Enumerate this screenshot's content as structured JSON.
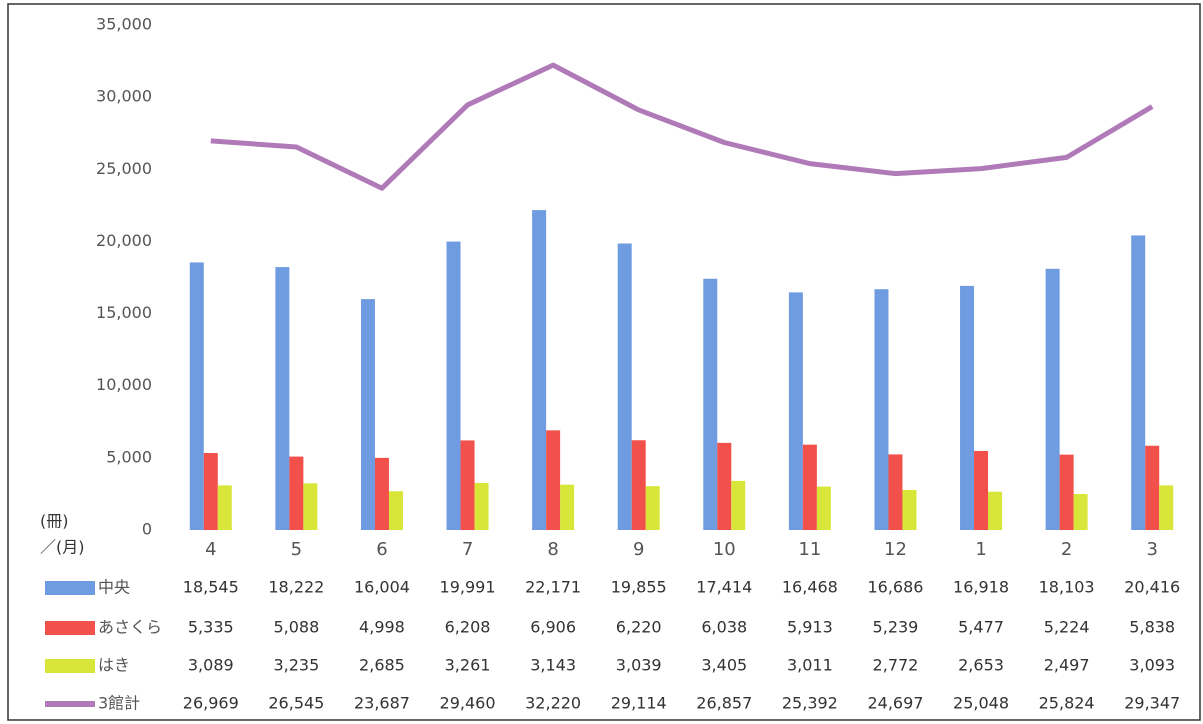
{
  "chart_data": {
    "type": "bar",
    "y_label": "(冊)",
    "x_label": "／(月)",
    "categories": [
      "4",
      "5",
      "6",
      "7",
      "8",
      "9",
      "10",
      "11",
      "12",
      "1",
      "2",
      "3"
    ],
    "ylim": [
      0,
      35000
    ],
    "yticks": [
      0,
      {
        "value": 5000,
        "label": "5,000"
      },
      {
        "value": 10000,
        "label": "10,000"
      },
      {
        "value": 15000,
        "label": "15,000"
      },
      {
        "value": 20000,
        "label": "20,000"
      },
      {
        "value": 25000,
        "label": "25,000"
      },
      {
        "value": 30000,
        "label": "30,000"
      },
      {
        "value": 35000,
        "label": "35,000"
      }
    ],
    "series": [
      {
        "name": "中央",
        "type": "bar",
        "color": "#6f9be0",
        "values": [
          18545,
          18222,
          16004,
          19991,
          22171,
          19855,
          17414,
          16468,
          16686,
          16918,
          18103,
          20416
        ],
        "value_labels": [
          "18,545",
          "18,222",
          "16,004",
          "19,991",
          "22,171",
          "19,855",
          "17,414",
          "16,468",
          "16,686",
          "16,918",
          "18,103",
          "20,416"
        ]
      },
      {
        "name": "あさくら",
        "type": "bar",
        "color": "#f2504a",
        "values": [
          5335,
          5088,
          4998,
          6208,
          6906,
          6220,
          6038,
          5913,
          5239,
          5477,
          5224,
          5838
        ],
        "value_labels": [
          "5,335",
          "5,088",
          "4,998",
          "6,208",
          "6,906",
          "6,220",
          "6,038",
          "5,913",
          "5,239",
          "5,477",
          "5,224",
          "5,838"
        ]
      },
      {
        "name": "はき",
        "type": "bar",
        "color": "#d8e63a",
        "values": [
          3089,
          3235,
          2685,
          3261,
          3143,
          3039,
          3405,
          3011,
          2772,
          2653,
          2497,
          3093
        ],
        "value_labels": [
          "3,089",
          "3,235",
          "2,685",
          "3,261",
          "3,143",
          "3,039",
          "3,405",
          "3,011",
          "2,772",
          "2,653",
          "2,497",
          "3,093"
        ]
      },
      {
        "name": "3館計",
        "type": "line",
        "color": "#b07ab8",
        "values": [
          26969,
          26545,
          23687,
          29460,
          32220,
          29114,
          26857,
          25392,
          24697,
          25048,
          25824,
          29347
        ],
        "value_labels": [
          "26,969",
          "26,545",
          "23,687",
          "29,460",
          "32,220",
          "29,114",
          "26,857",
          "25,392",
          "24,697",
          "25,048",
          "25,824",
          "29,347"
        ]
      }
    ]
  }
}
